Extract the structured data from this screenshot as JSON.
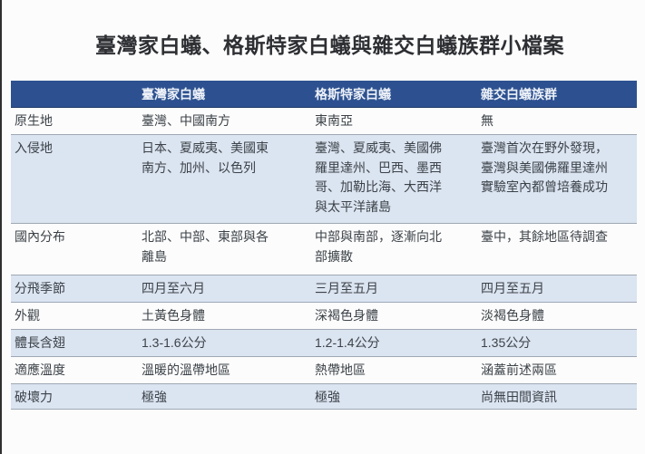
{
  "page_title": "臺灣家白蟻、格斯特家白蟻與雜交白蟻族群小檔案",
  "colors": {
    "header_bg": "#2d5190",
    "header_text": "#edf1f8",
    "row_alt_bg": "#dbe4f1",
    "border": "#9fa8b4",
    "body_text": "#3c4248",
    "title_text": "#2d2f33"
  },
  "chart_data": {
    "type": "table",
    "title": "臺灣家白蟻、格斯特家白蟻與雜交白蟻族群小檔案",
    "legend_position": "none",
    "grid": "horizontal-hairlines",
    "columns": [
      "臺灣家白蟻",
      "格斯特家白蟻",
      "雜交白蟻族群"
    ],
    "rows": [
      {
        "label": "原生地",
        "cells": [
          "臺灣、中國南方",
          "東南亞",
          "無"
        ]
      },
      {
        "label": "入侵地",
        "cells": [
          "日本、夏威夷、美國東\n南方、加州、以色列",
          "臺灣、夏威夷、美國佛\n羅里達州、巴西、墨西\n哥、加勒比海、大西洋\n與太平洋諸島",
          "臺灣首次在野外發現，\n臺灣與美國佛羅里達州\n實驗室內都曾培養成功"
        ]
      },
      {
        "label": "國內分布",
        "cells": [
          "北部、中部、東部與各\n離島",
          "中部與南部，逐漸向北\n部擴散",
          "臺中，其餘地區待調查"
        ]
      },
      {
        "label": "分飛季節",
        "cells": [
          "四月至六月",
          "三月至五月",
          "四月至五月"
        ]
      },
      {
        "label": "外觀",
        "cells": [
          "土黃色身體",
          "深褐色身體",
          "淡褐色身體"
        ]
      },
      {
        "label": "體長含翅",
        "cells": [
          "1.3-1.6公分",
          "1.2-1.4公分",
          "1.35公分"
        ]
      },
      {
        "label": "適應溫度",
        "cells": [
          "溫暖的溫帶地區",
          "熱帶地區",
          "涵蓋前述兩區"
        ]
      },
      {
        "label": "破壞力",
        "cells": [
          "極強",
          "極強",
          "尚無田間資訊"
        ]
      }
    ]
  }
}
